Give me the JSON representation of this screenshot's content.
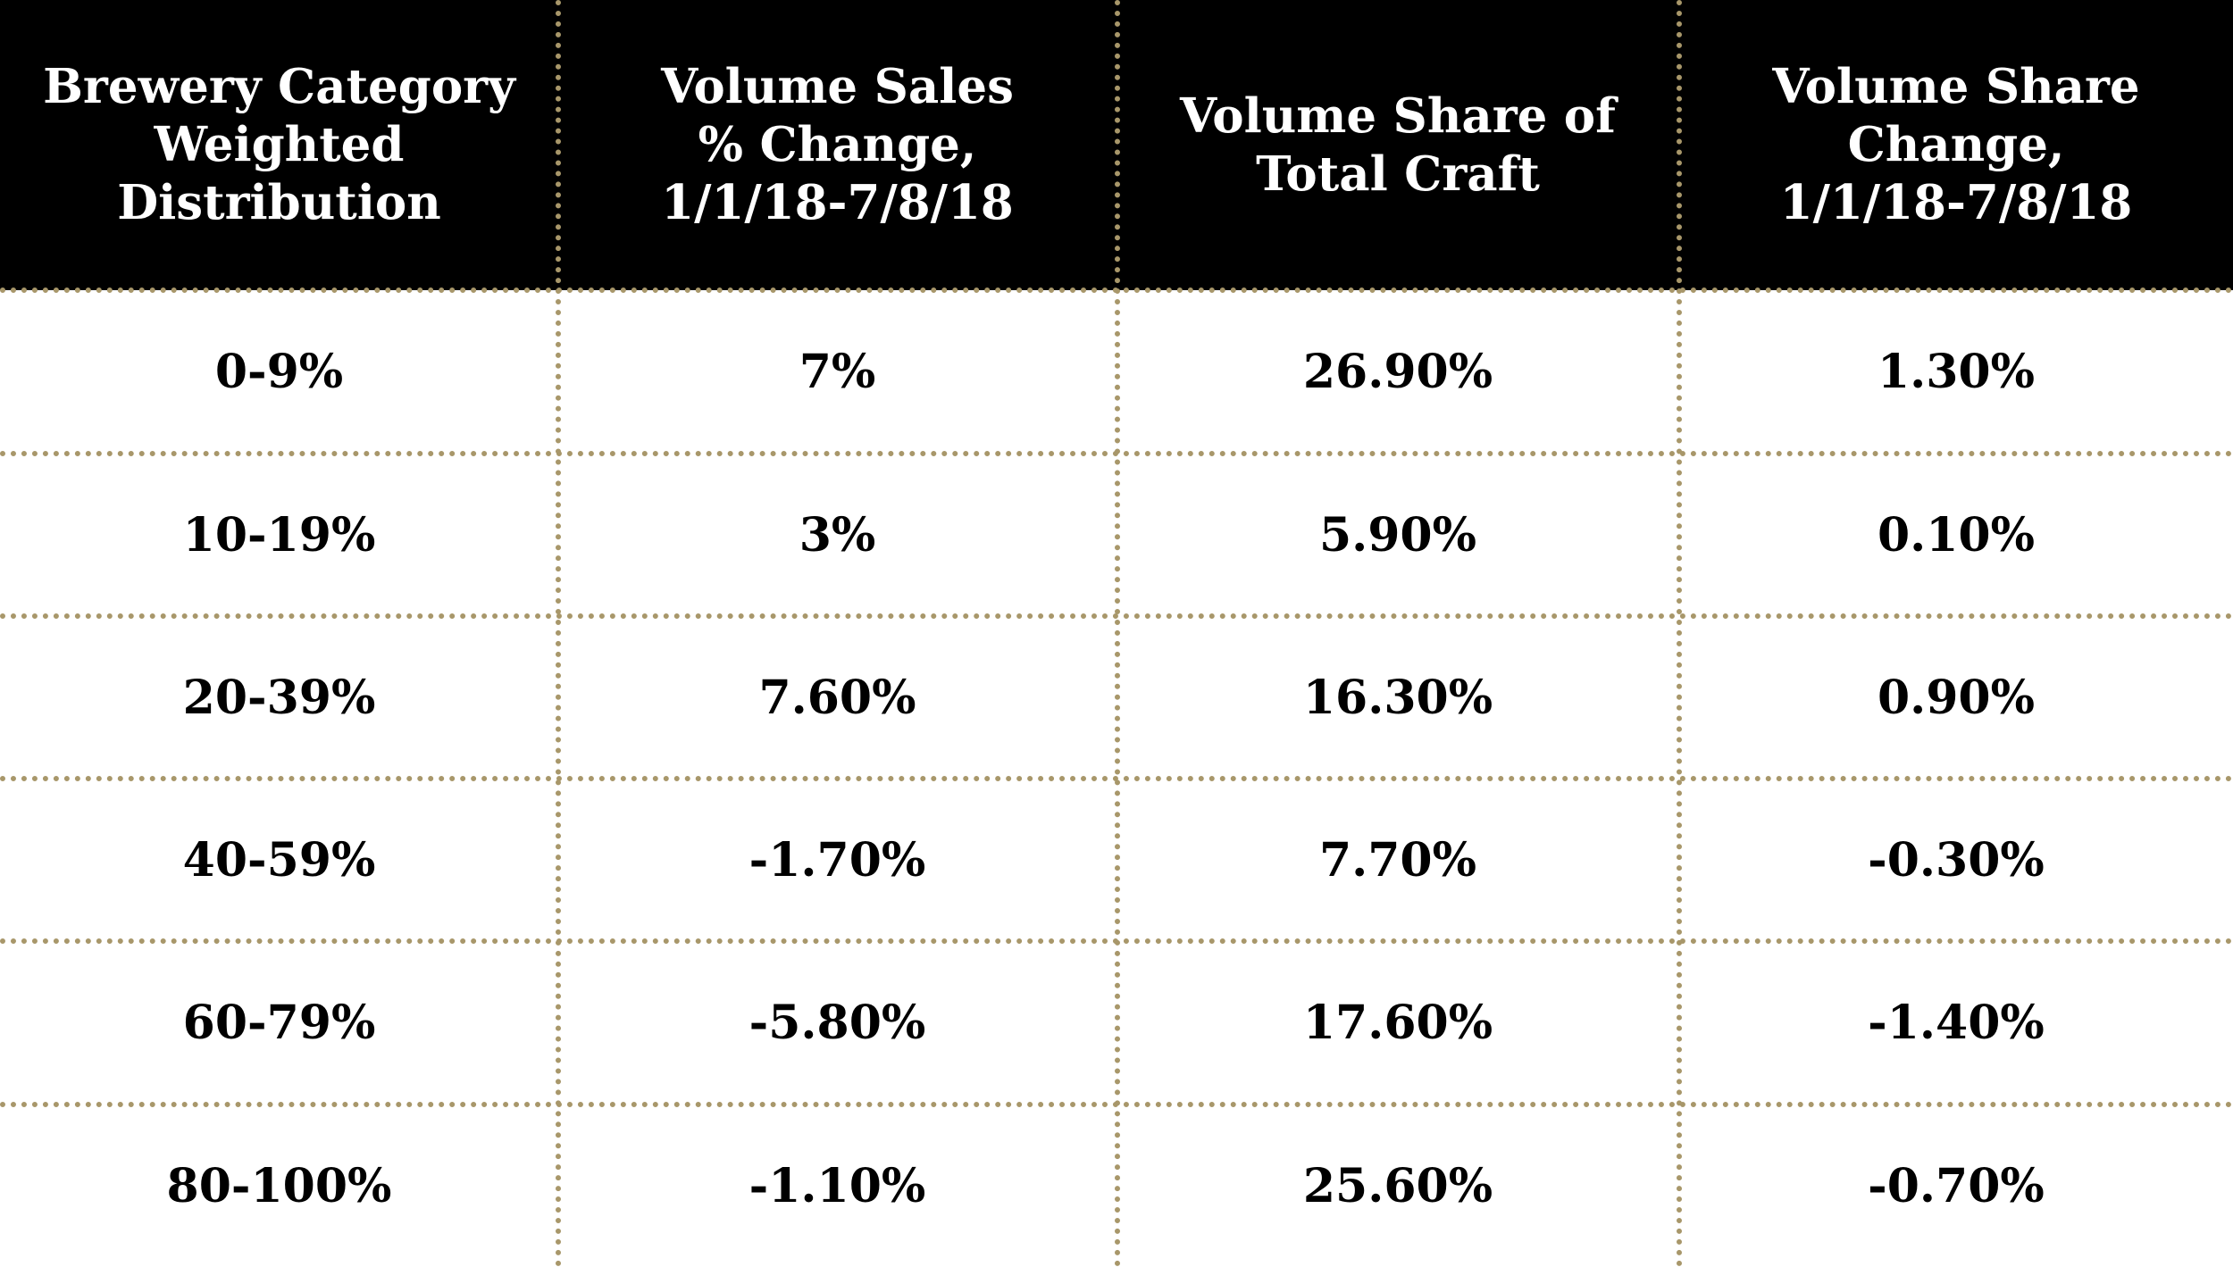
{
  "chart_data": {
    "type": "table",
    "columns": [
      "Brewery Category\nWeighted\nDistribution",
      "Volume Sales\n% Change,\n1/1/18-7/8/18",
      "Volume Share of\nTotal Craft",
      "Volume Share\nChange,\n1/1/18-7/8/18"
    ],
    "rows": [
      [
        "0-9%",
        "7%",
        "26.90%",
        "1.30%"
      ],
      [
        "10-19%",
        "3%",
        "5.90%",
        "0.10%"
      ],
      [
        "20-39%",
        "7.60%",
        "16.30%",
        "0.90%"
      ],
      [
        "40-59%",
        "-1.70%",
        "7.70%",
        "-0.30%"
      ],
      [
        "60-79%",
        "-5.80%",
        "17.60%",
        "-1.40%"
      ],
      [
        "80-100%",
        "-1.10%",
        "25.60%",
        "-0.70%"
      ]
    ],
    "colors": {
      "header_background": "#000000",
      "header_text": "#ffffff",
      "body_text": "#000000",
      "divider": "#a8976a"
    }
  }
}
